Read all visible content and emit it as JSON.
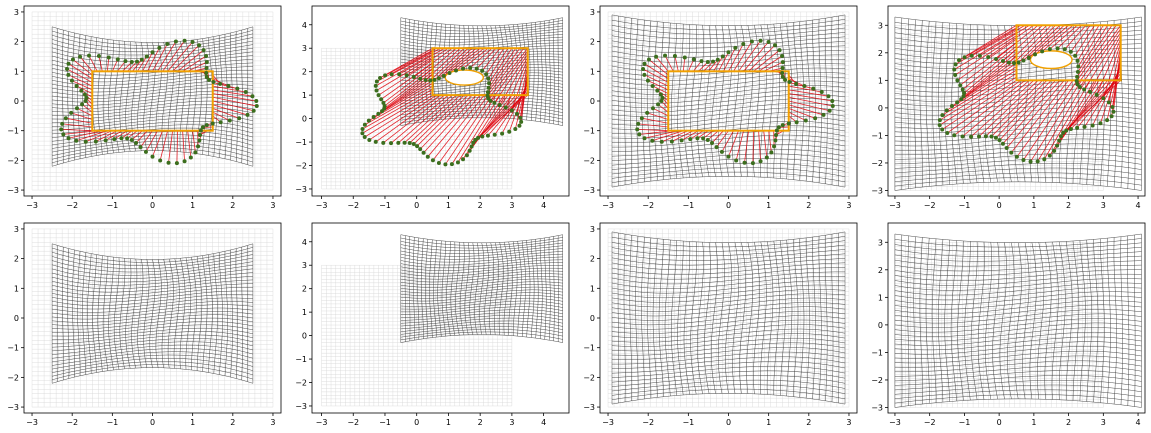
{
  "colors": {
    "warped_grid": "#3a3a3a",
    "reference_grid": "#d6d6d6",
    "correspondence_lines": "#e0000b",
    "source_points": "#3c6e1e",
    "target_points": "#f0a000",
    "axes": "#000000"
  },
  "chart_data": [
    {
      "type": "line",
      "row": "top",
      "column": 1,
      "xlim": [
        -3.2,
        3.2
      ],
      "ylim": [
        -3.2,
        3.2
      ],
      "xticks": [
        "−3",
        "−2",
        "−1",
        "0",
        "1",
        "2",
        "3"
      ],
      "yticks": [
        "−3",
        "−2",
        "−1",
        "0",
        "1",
        "2",
        "3"
      ],
      "reference_grid": {
        "x": [
          -3,
          3
        ],
        "y": [
          -3,
          3
        ]
      },
      "warped_grid": {
        "x": [
          -2.5,
          2.5
        ],
        "y": [
          -2.2,
          2.5
        ],
        "waist": 0.45
      },
      "source_shape": {
        "shape": "flower",
        "center": [
          0,
          0
        ],
        "radius": 1.85,
        "amplitude": 0.5,
        "lobes": 5,
        "phase": 0.3
      },
      "target_shape": {
        "shape": "rectangle",
        "x": [
          -1.5,
          1.5
        ],
        "y": [
          -1,
          1
        ]
      },
      "correspondences": 80
    },
    {
      "type": "line",
      "row": "top",
      "column": 2,
      "xlim": [
        -3.3,
        4.8
      ],
      "ylim": [
        -3.3,
        4.8
      ],
      "xticks": [
        "−3",
        "−2",
        "−1",
        "0",
        "1",
        "2",
        "3",
        "4"
      ],
      "yticks": [
        "−3",
        "−2",
        "−1",
        "0",
        "1",
        "2",
        "3",
        "4"
      ],
      "reference_grid": {
        "x": [
          -3,
          3
        ],
        "y": [
          -3,
          3
        ]
      },
      "warped_grid": {
        "x": [
          -0.5,
          4.6
        ],
        "y": [
          -0.3,
          4.3
        ],
        "waist": 0.3
      },
      "source_shape": {
        "shape": "flower",
        "center": [
          0.7,
          0.2
        ],
        "radius": 1.9,
        "amplitude": 0.45,
        "lobes": 5,
        "phase": 0.9
      },
      "target_shape": {
        "shape": "rectangle_with_hole",
        "x": [
          0.5,
          3.5
        ],
        "y": [
          1,
          3
        ]
      },
      "correspondences": 80
    },
    {
      "type": "line",
      "row": "top",
      "column": 3,
      "xlim": [
        -3.2,
        3.2
      ],
      "ylim": [
        -3.2,
        3.2
      ],
      "xticks": [
        "−3",
        "−2",
        "−1",
        "0",
        "1",
        "2",
        "3"
      ],
      "yticks": [
        "−3",
        "−2",
        "−1",
        "0",
        "1",
        "2",
        "3"
      ],
      "reference_grid": {
        "x": [
          -3,
          3
        ],
        "y": [
          -3,
          3
        ]
      },
      "warped_grid": {
        "x": [
          -2.9,
          2.9
        ],
        "y": [
          -2.9,
          2.9
        ],
        "waist": 0.25
      },
      "source_shape": {
        "shape": "flower",
        "center": [
          0,
          0
        ],
        "radius": 1.85,
        "amplitude": 0.5,
        "lobes": 5,
        "phase": 0.3
      },
      "target_shape": {
        "shape": "rectangle",
        "x": [
          -1.5,
          1.5
        ],
        "y": [
          -1,
          1
        ]
      },
      "correspondences": 80
    },
    {
      "type": "line",
      "row": "top",
      "column": 4,
      "xlim": [
        -3.2,
        4.2
      ],
      "ylim": [
        -3.2,
        3.7
      ],
      "xticks": [
        "−3",
        "−2",
        "−1",
        "0",
        "1",
        "2",
        "3",
        "4"
      ],
      "yticks": [
        "−3",
        "−2",
        "−1",
        "0",
        "1",
        "2",
        "3"
      ],
      "reference_grid": {
        "x": [
          -3,
          3
        ],
        "y": [
          -3,
          3
        ]
      },
      "warped_grid": {
        "x": [
          -3,
          4.1
        ],
        "y": [
          -3,
          3.3
        ],
        "waist": 0.2
      },
      "source_shape": {
        "shape": "flower",
        "center": [
          0.7,
          0.2
        ],
        "radius": 1.9,
        "amplitude": 0.45,
        "lobes": 5,
        "phase": 0.9
      },
      "target_shape": {
        "shape": "rectangle_with_hole",
        "x": [
          0.5,
          3.5
        ],
        "y": [
          1,
          3
        ]
      },
      "correspondences": 80
    },
    {
      "type": "line",
      "row": "bottom",
      "column": 1,
      "xlim": [
        -3.2,
        3.2
      ],
      "ylim": [
        -3.2,
        3.2
      ],
      "xticks": [
        "−3",
        "−2",
        "−1",
        "0",
        "1",
        "2",
        "3"
      ],
      "yticks": [
        "−3",
        "−2",
        "−1",
        "0",
        "1",
        "2",
        "3"
      ],
      "reference_grid": {
        "x": [
          -3,
          3
        ],
        "y": [
          -3,
          3
        ]
      },
      "warped_grid": {
        "x": [
          -2.5,
          2.5
        ],
        "y": [
          -2.2,
          2.5
        ],
        "waist": 0.45
      }
    },
    {
      "type": "line",
      "row": "bottom",
      "column": 2,
      "xlim": [
        -3.3,
        4.8
      ],
      "ylim": [
        -3.3,
        4.8
      ],
      "xticks": [
        "−3",
        "−2",
        "−1",
        "0",
        "1",
        "2",
        "3",
        "4"
      ],
      "yticks": [
        "−3",
        "−2",
        "−1",
        "0",
        "1",
        "2",
        "3",
        "4"
      ],
      "reference_grid": {
        "x": [
          -3,
          3
        ],
        "y": [
          -3,
          3
        ]
      },
      "warped_grid": {
        "x": [
          -0.5,
          4.6
        ],
        "y": [
          -0.3,
          4.3
        ],
        "waist": 0.3
      }
    },
    {
      "type": "line",
      "row": "bottom",
      "column": 3,
      "xlim": [
        -3.2,
        3.2
      ],
      "ylim": [
        -3.2,
        3.2
      ],
      "xticks": [
        "−3",
        "−2",
        "−1",
        "0",
        "1",
        "2",
        "3"
      ],
      "yticks": [
        "−3",
        "−2",
        "−1",
        "0",
        "1",
        "2",
        "3"
      ],
      "reference_grid": {
        "x": [
          -3,
          3
        ],
        "y": [
          -3,
          3
        ]
      },
      "warped_grid": {
        "x": [
          -2.9,
          2.9
        ],
        "y": [
          -2.9,
          2.9
        ],
        "waist": 0.25
      }
    },
    {
      "type": "line",
      "row": "bottom",
      "column": 4,
      "xlim": [
        -3.2,
        4.2
      ],
      "ylim": [
        -3.2,
        3.7
      ],
      "xticks": [
        "−3",
        "−2",
        "−1",
        "0",
        "1",
        "2",
        "3",
        "4"
      ],
      "yticks": [
        "−3",
        "−2",
        "−1",
        "0",
        "1",
        "2",
        "3"
      ],
      "reference_grid": {
        "x": [
          -3,
          3
        ],
        "y": [
          -3,
          3
        ]
      },
      "warped_grid": {
        "x": [
          -3,
          4.1
        ],
        "y": [
          -3,
          3.3
        ],
        "waist": 0.2
      }
    }
  ]
}
